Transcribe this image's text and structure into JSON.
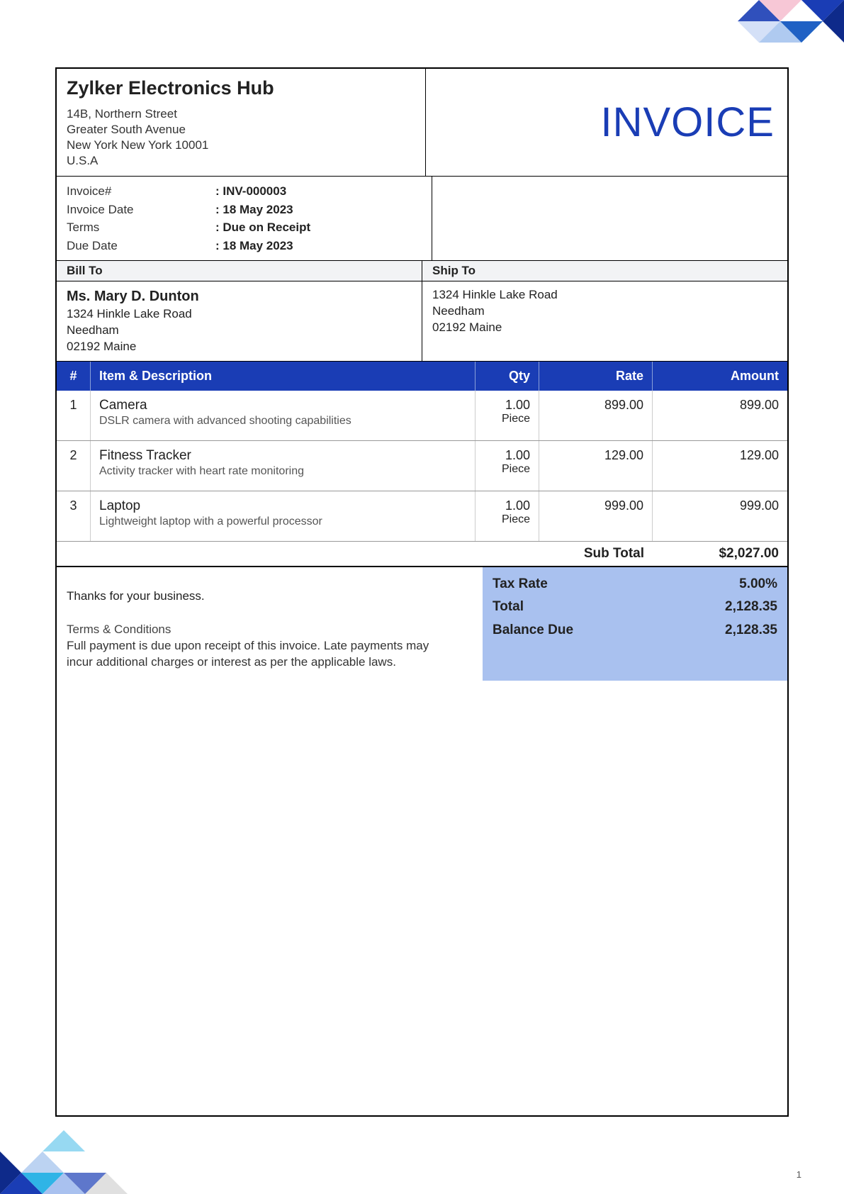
{
  "company": {
    "name": "Zylker Electronics Hub",
    "addr1": "14B, Northern Street",
    "addr2": "Greater South Avenue",
    "addr3": "New York New York 10001",
    "addr4": "U.S.A"
  },
  "title": "INVOICE",
  "meta": {
    "invoice_num_label": "Invoice#",
    "invoice_num": ": INV-000003",
    "invoice_date_label": "Invoice Date",
    "invoice_date": ": 18 May 2023",
    "terms_label": "Terms",
    "terms": ": Due on Receipt",
    "due_date_label": "Due Date",
    "due_date": ": 18 May 2023"
  },
  "bill_to_label": "Bill To",
  "ship_to_label": "Ship To",
  "bill_to": {
    "name": "Ms. Mary D. Dunton",
    "line1": "1324 Hinkle Lake Road",
    "line2": "Needham",
    "line3": "02192 Maine"
  },
  "ship_to": {
    "line1": "1324 Hinkle Lake Road",
    "line2": "Needham",
    "line3": "02192 Maine"
  },
  "columns": {
    "num": "#",
    "desc": "Item & Description",
    "qty": "Qty",
    "rate": "Rate",
    "amount": "Amount"
  },
  "items": [
    {
      "n": "1",
      "title": "Camera",
      "sub": "DSLR camera with advanced shooting capabilities",
      "qty": "1.00",
      "unit": "Piece",
      "rate": "899.00",
      "amount": "899.00"
    },
    {
      "n": "2",
      "title": "Fitness Tracker",
      "sub": "Activity tracker with heart rate monitoring",
      "qty": "1.00",
      "unit": "Piece",
      "rate": "129.00",
      "amount": "129.00"
    },
    {
      "n": "3",
      "title": "Laptop",
      "sub": "Lightweight laptop with a powerful processor",
      "qty": "1.00",
      "unit": "Piece",
      "rate": "999.00",
      "amount": "999.00"
    }
  ],
  "subtotal_label": "Sub Total",
  "subtotal": "$2,027.00",
  "thanks": "Thanks for your business.",
  "tc_title": "Terms & Conditions",
  "tc_body": "Full payment is due upon receipt of this invoice. Late payments may incur additional charges or interest as per the applicable laws.",
  "totals": {
    "tax_label": "Tax Rate",
    "tax": "5.00%",
    "total_label": "Total",
    "total": "2,128.35",
    "balance_label": "Balance Due",
    "balance": "2,128.35"
  },
  "page_number": "1",
  "colors": {
    "brand_blue": "#1a3db5",
    "totals_bg": "#a9c1ef",
    "header_bg": "#f2f3f5"
  }
}
